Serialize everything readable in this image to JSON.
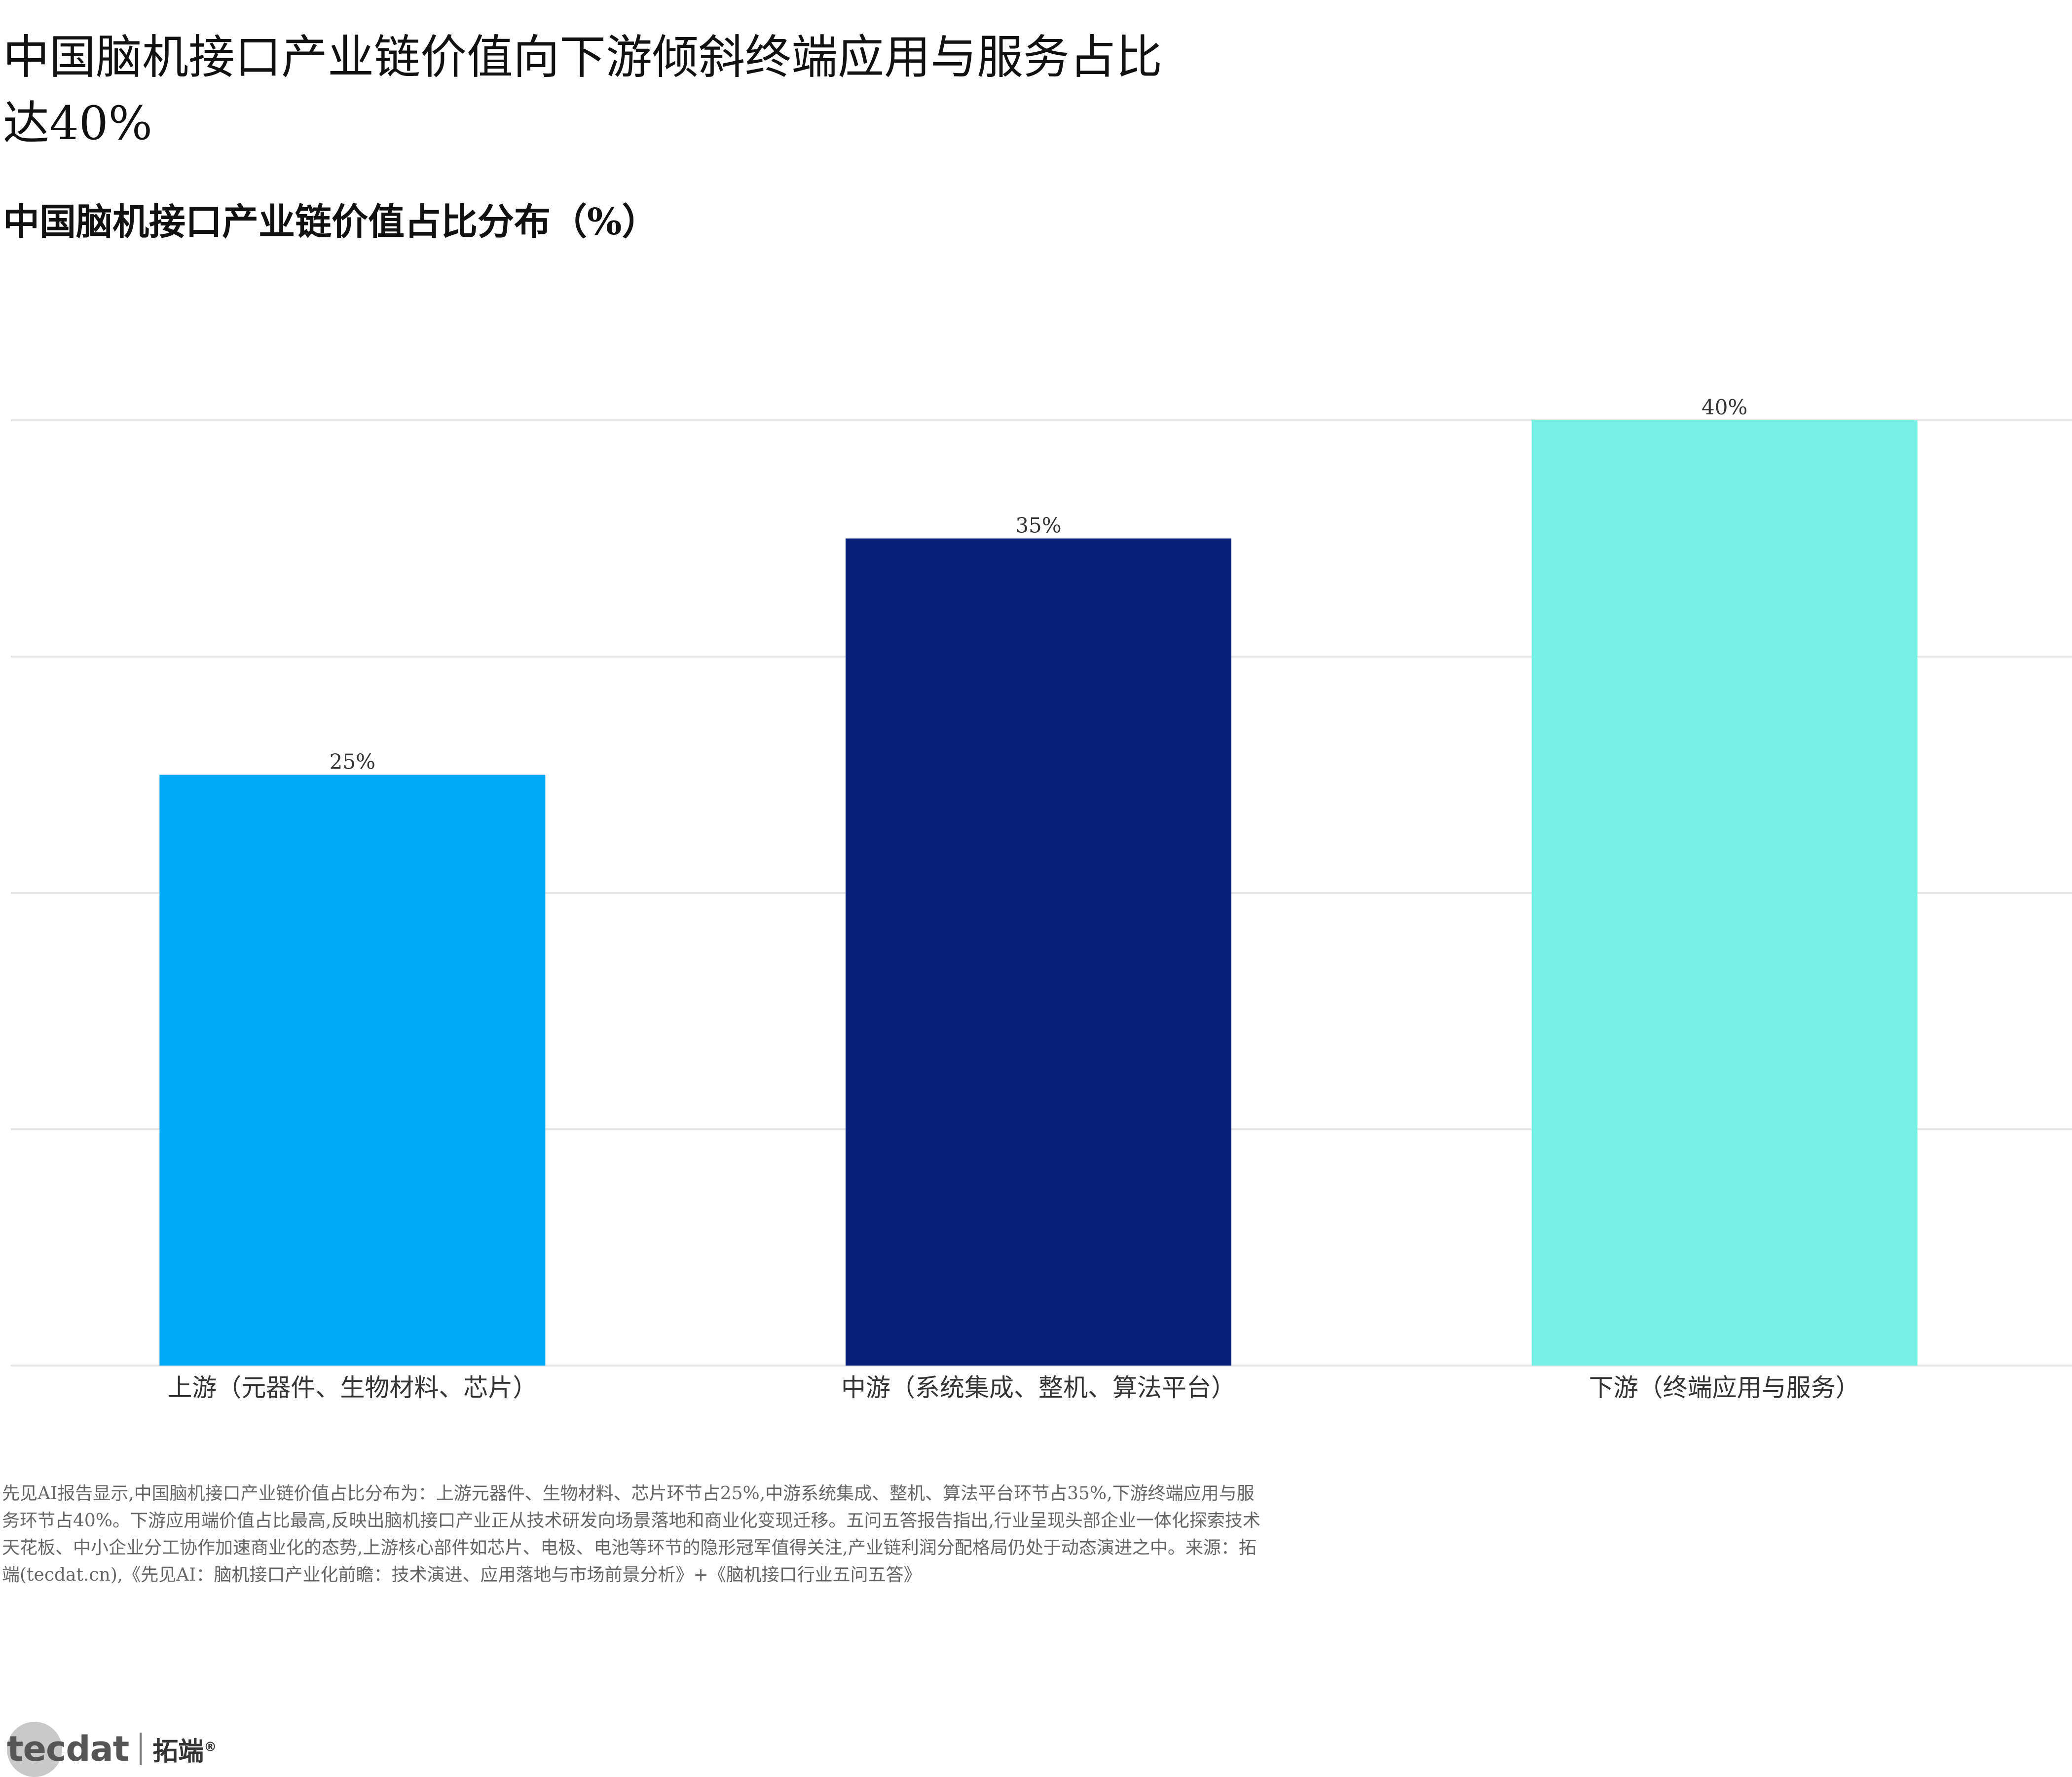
{
  "header": {
    "title": "中国脑机接口产业链价值向下游倾斜终端应用与服务占比达40%",
    "subtitle": "中国脑机接口产业链价值占比分布（%）"
  },
  "chart_data": {
    "type": "bar",
    "categories": [
      "上游（元器件、生物材料、芯片）",
      "中游（系统集成、整机、算法平台）",
      "下游（终端应用与服务）"
    ],
    "values": [
      25,
      35,
      40
    ],
    "data_labels": [
      "25%",
      "35%",
      "40%"
    ],
    "colors": [
      "#02A9F4",
      "#081F79",
      "#76F0E4"
    ],
    "ylim": [
      0,
      40
    ],
    "grid": true,
    "gridline_color": "#e6e6e6",
    "yticks_visible": false
  },
  "footer": {
    "caption": "先见AI报告显示,中国脑机接口产业链价值占比分布为：上游元器件、生物材料、芯片环节占25%,中游系统集成、整机、算法平台环节占35%,下游终端应用与服务环节占40%。下游应用端价值占比最高,反映出脑机接口产业正从技术研发向场景落地和商业化变现迁移。五问五答报告指出,行业呈现头部企业一体化探索技术天花板、中小企业分工协作加速商业化的态势,上游核心部件如芯片、电极、电池等环节的隐形冠军值得关注,产业链利润分配格局仍处于动态演进之中。来源：拓端(tecdat.cn),《先见AI：脑机接口产业化前瞻：技术演进、应用落地与市场前景分析》+《脑机接口行业五问五答》",
    "logo_text": "tecdat",
    "logo_cn": "拓端",
    "logo_mark": "®"
  }
}
